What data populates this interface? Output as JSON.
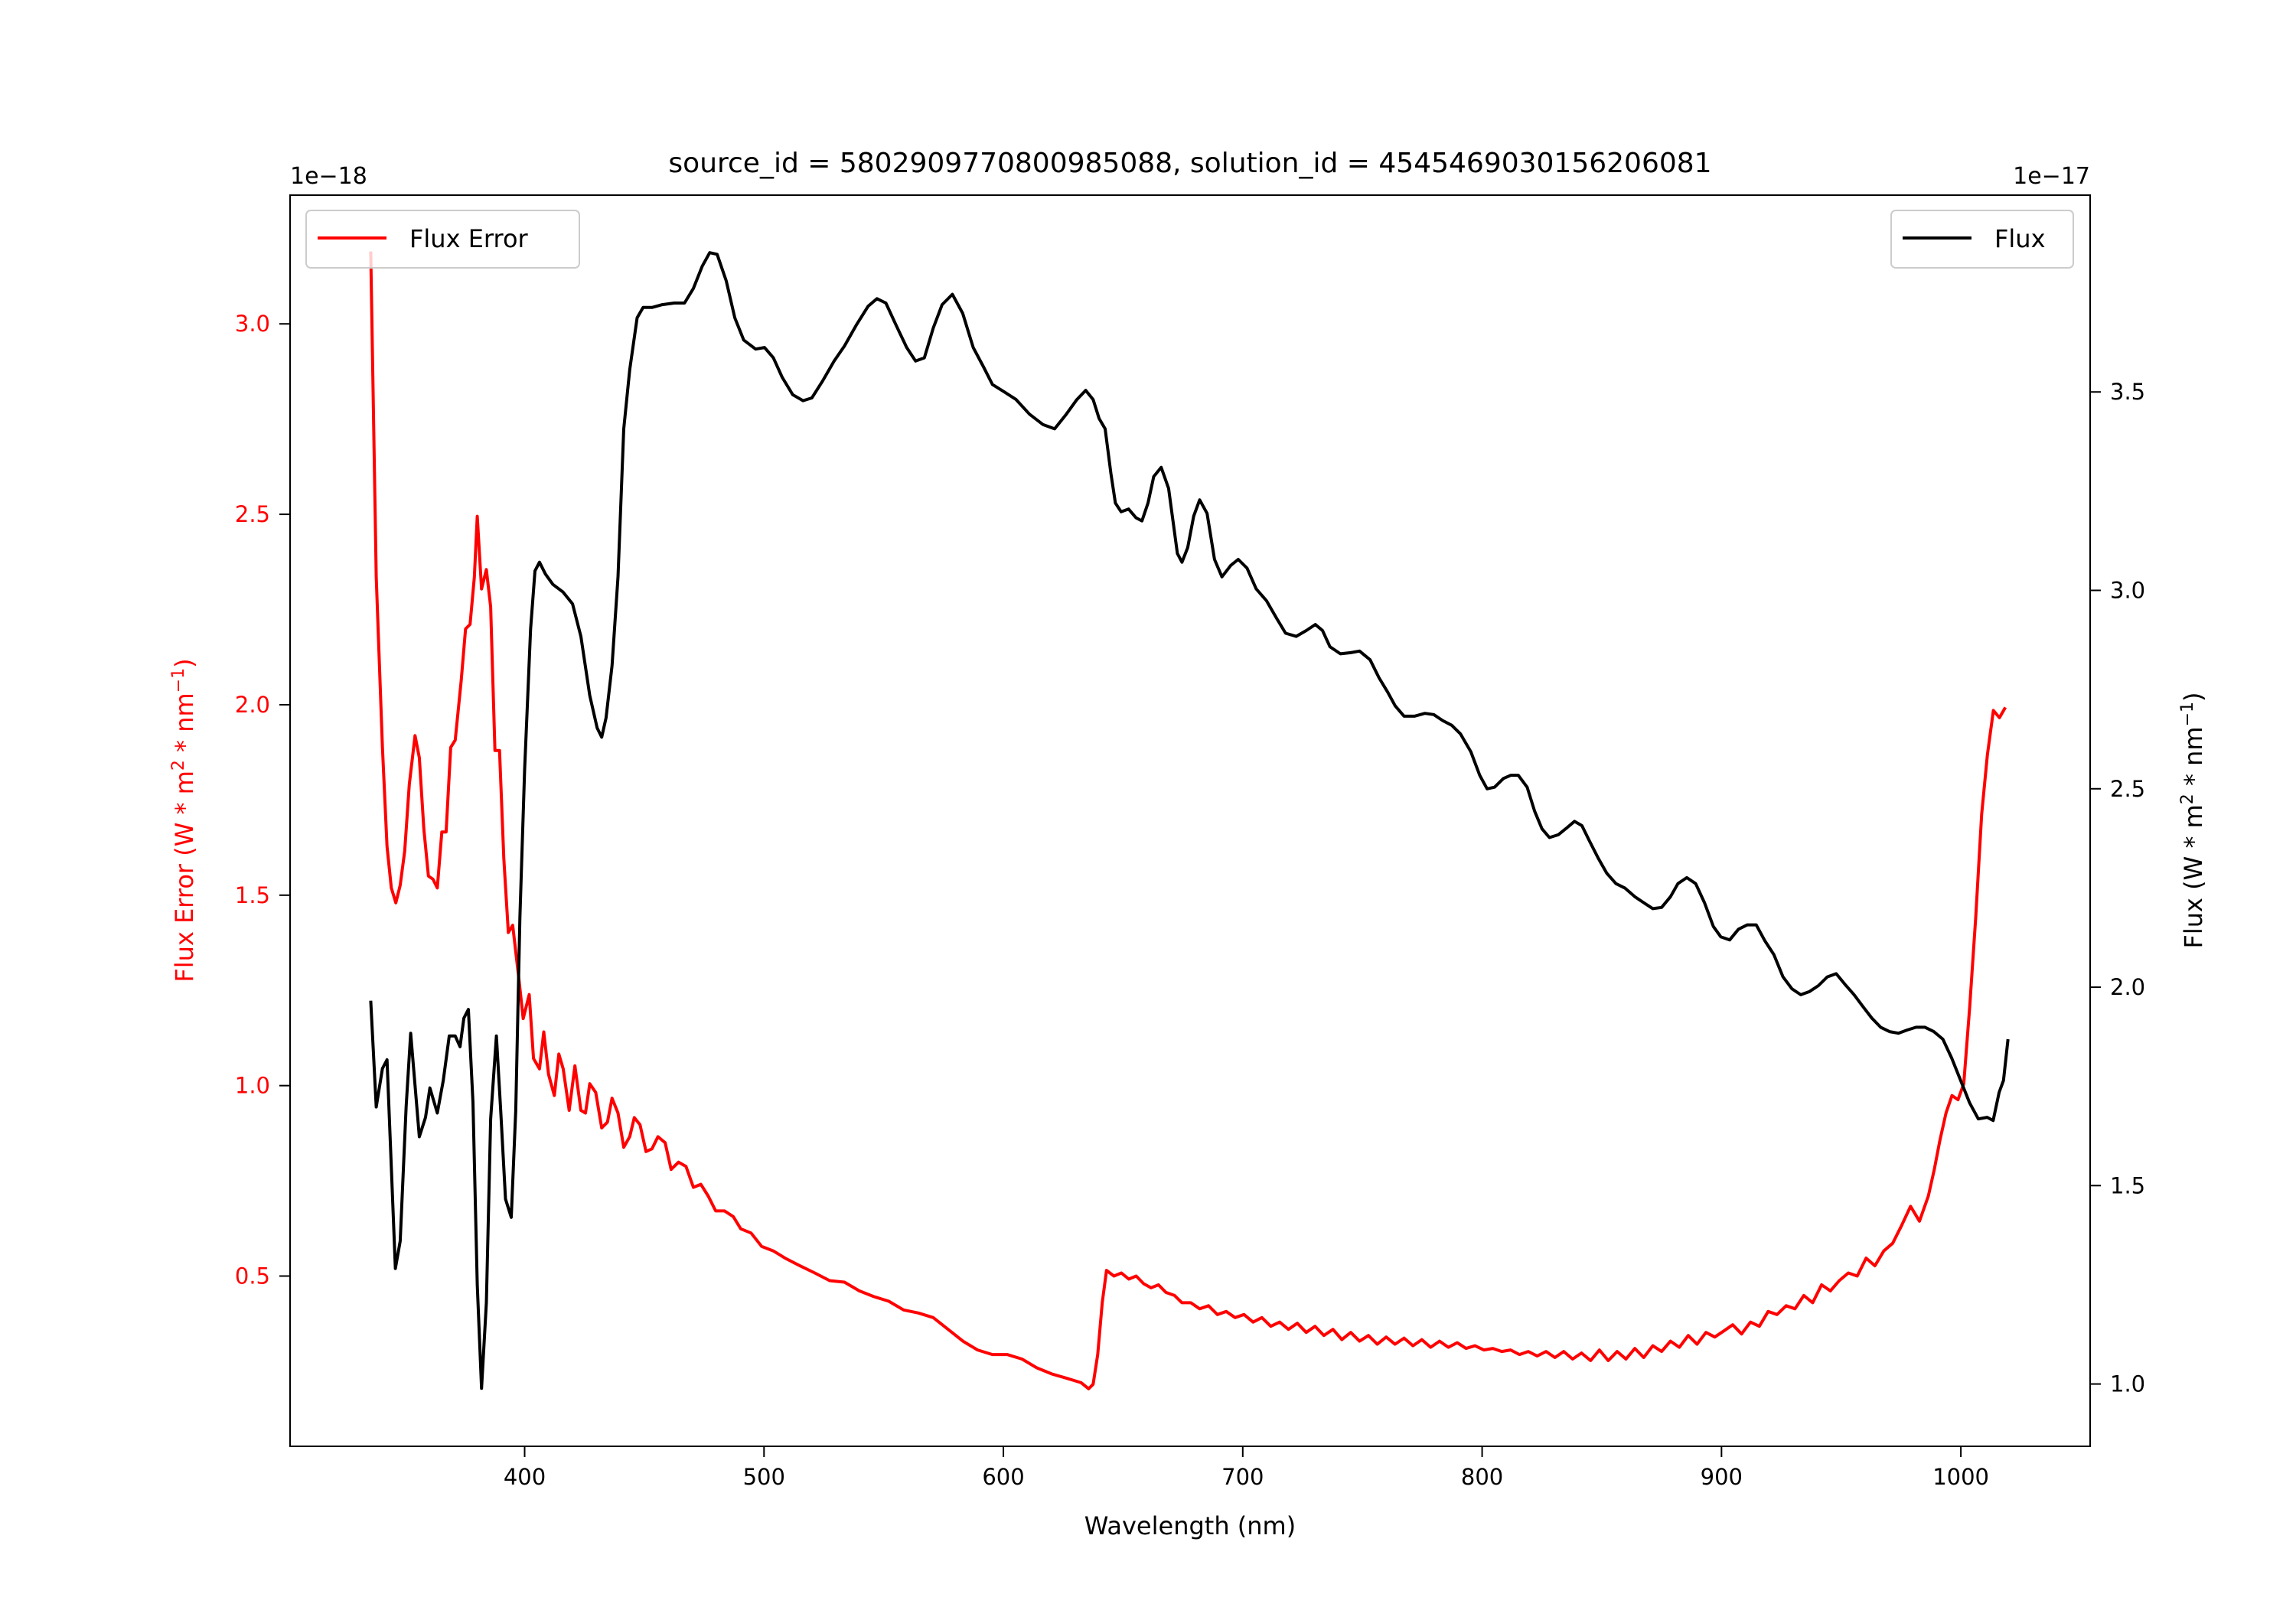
{
  "chart_data": {
    "type": "line",
    "title": "source_id = 5802909770800985088, solution_id = 4545469030156206081",
    "xlabel": "Wavelength (nm)",
    "xlim": [
      302,
      1054
    ],
    "xticks": [
      400,
      500,
      600,
      700,
      800,
      900,
      1000
    ],
    "grid": false,
    "left_axis": {
      "label_main": "Flux Error (W * m",
      "label_sup1": "2",
      "label_mid": " * nm",
      "label_sup2": "−1",
      "label_end": ")",
      "offset_text": "1e−18",
      "ylim": [
        0.053,
        3.338
      ],
      "ticks": [
        0.5,
        1.0,
        1.5,
        2.0,
        2.5,
        3.0
      ],
      "tick_labels": [
        "0.5",
        "1.0",
        "1.5",
        "2.0",
        "2.5",
        "3.0"
      ],
      "color": "#ff0000"
    },
    "right_axis": {
      "label_main": "Flux (W * m",
      "label_sup1": "2",
      "label_mid": " * nm",
      "label_sup2": "−1",
      "label_end": ")",
      "offset_text": "1e−17",
      "ylim": [
        0.843,
        3.996
      ],
      "ticks": [
        1.0,
        1.5,
        2.0,
        2.5,
        3.0,
        3.5
      ],
      "tick_labels": [
        "1.0",
        "1.5",
        "2.0",
        "2.5",
        "3.0",
        "3.5"
      ],
      "color": "#000000"
    },
    "legends": [
      {
        "label": "Flux Error",
        "color": "#ff0000",
        "placement": "upper-left"
      },
      {
        "label": "Flux",
        "color": "#000000",
        "placement": "upper-right"
      }
    ],
    "series": [
      {
        "name": "Flux Error",
        "axis": "left",
        "color": "#ff0000",
        "unit_multiplier": "1e-18",
        "x": [
          335.7,
          338,
          340.6,
          342.5,
          344.3,
          346.2,
          348,
          349.9,
          351.8,
          354.2,
          356,
          357.9,
          359.8,
          361.7,
          363.5,
          365.4,
          367.2,
          369.1,
          371,
          373.5,
          375.3,
          377.2,
          379,
          380.2,
          382,
          384,
          385.8,
          387.6,
          389.5,
          391.3,
          393.2,
          395,
          397.5,
          399.4,
          401.9,
          403.7,
          406.2,
          408,
          410,
          412.4,
          414.3,
          416.1,
          418.6,
          421,
          423.5,
          425.4,
          427.2,
          429.7,
          432.2,
          434.6,
          436.5,
          439,
          441.4,
          443.9,
          445.8,
          448.2,
          450.7,
          453.2,
          455.7,
          458.7,
          461.2,
          464.3,
          467.4,
          470.5,
          473.6,
          476.7,
          479.8,
          483.5,
          487.2,
          490.3,
          494.6,
          499,
          503.9,
          508.8,
          515,
          521.2,
          527.4,
          533.6,
          539.8,
          545.9,
          552.1,
          558.3,
          564.5,
          570.7,
          576.9,
          583.1,
          589.2,
          595.4,
          601.6,
          607.8,
          614,
          620.2,
          626.3,
          632.5,
          635.6,
          637.5,
          639.4,
          641.3,
          643.1,
          646.2,
          649.3,
          652.4,
          655.5,
          658.6,
          661.7,
          664.8,
          667.9,
          671.5,
          674.6,
          678.3,
          682,
          685.7,
          689.4,
          693.1,
          696.8,
          700.5,
          704.3,
          708,
          711.7,
          715.4,
          719.1,
          722.8,
          726.5,
          730.2,
          733.9,
          737.7,
          741.4,
          745.1,
          748.8,
          752.5,
          756.2,
          759.9,
          763.6,
          767.4,
          771.1,
          774.8,
          778.5,
          782.2,
          785.9,
          789.6,
          793.3,
          797,
          800.7,
          804.5,
          808.2,
          811.9,
          815.6,
          819.3,
          823,
          826.7,
          830.4,
          834.1,
          837.8,
          841.5,
          845.3,
          849,
          852.7,
          856.4,
          860.1,
          863.8,
          867.5,
          871.3,
          875,
          878.7,
          882.4,
          886.1,
          889.8,
          893.5,
          897.2,
          901,
          904.7,
          908.4,
          912.1,
          915.8,
          919.5,
          923.2,
          927,
          930.7,
          934.4,
          938.1,
          941.8,
          945.5,
          949.2,
          953,
          956.7,
          960.4,
          964.1,
          967.8,
          971.5,
          975.2,
          979,
          982.7,
          986.4,
          988.9,
          991.3,
          993.8,
          996.3,
          998.8,
          1001.2,
          1003.7,
          1006.2,
          1008.7,
          1011.1,
          1013.6,
          1016.1,
          1018.6
        ],
        "y": [
          3.19,
          2.335,
          1.888,
          1.628,
          1.519,
          1.48,
          1.526,
          1.616,
          1.791,
          1.919,
          1.861,
          1.674,
          1.55,
          1.542,
          1.519,
          1.666,
          1.666,
          1.888,
          1.907,
          2.063,
          2.199,
          2.211,
          2.335,
          2.495,
          2.304,
          2.355,
          2.257,
          1.88,
          1.88,
          1.596,
          1.402,
          1.421,
          1.285,
          1.176,
          1.239,
          1.071,
          1.044,
          1.141,
          1.029,
          0.974,
          1.083,
          1.044,
          0.935,
          1.052,
          0.935,
          0.928,
          1.005,
          0.982,
          0.889,
          0.904,
          0.967,
          0.928,
          0.838,
          0.866,
          0.916,
          0.897,
          0.827,
          0.834,
          0.866,
          0.85,
          0.78,
          0.799,
          0.788,
          0.733,
          0.741,
          0.71,
          0.671,
          0.671,
          0.656,
          0.624,
          0.613,
          0.578,
          0.566,
          0.547,
          0.527,
          0.508,
          0.488,
          0.484,
          0.461,
          0.446,
          0.434,
          0.411,
          0.403,
          0.391,
          0.36,
          0.329,
          0.306,
          0.294,
          0.294,
          0.282,
          0.259,
          0.243,
          0.232,
          0.22,
          0.204,
          0.216,
          0.294,
          0.43,
          0.515,
          0.5,
          0.508,
          0.492,
          0.5,
          0.48,
          0.469,
          0.477,
          0.457,
          0.449,
          0.43,
          0.43,
          0.414,
          0.422,
          0.399,
          0.407,
          0.391,
          0.399,
          0.379,
          0.391,
          0.368,
          0.379,
          0.36,
          0.376,
          0.352,
          0.368,
          0.344,
          0.36,
          0.333,
          0.352,
          0.329,
          0.344,
          0.321,
          0.34,
          0.321,
          0.337,
          0.317,
          0.333,
          0.313,
          0.329,
          0.313,
          0.325,
          0.31,
          0.317,
          0.306,
          0.31,
          0.302,
          0.306,
          0.294,
          0.302,
          0.29,
          0.302,
          0.286,
          0.302,
          0.282,
          0.298,
          0.278,
          0.306,
          0.278,
          0.302,
          0.282,
          0.31,
          0.286,
          0.317,
          0.302,
          0.329,
          0.313,
          0.344,
          0.321,
          0.352,
          0.34,
          0.356,
          0.372,
          0.348,
          0.379,
          0.368,
          0.407,
          0.399,
          0.422,
          0.414,
          0.449,
          0.43,
          0.477,
          0.461,
          0.488,
          0.508,
          0.5,
          0.547,
          0.527,
          0.566,
          0.586,
          0.632,
          0.683,
          0.644,
          0.71,
          0.78,
          0.858,
          0.928,
          0.974,
          0.963,
          1.005,
          1.208,
          1.441,
          1.713,
          1.869,
          1.985,
          1.966,
          1.993
        ]
      },
      {
        "name": "Flux",
        "axis": "right",
        "color": "#000000",
        "unit_multiplier": "1e-17",
        "x": [
          335.7,
          338,
          340.6,
          342.5,
          346,
          348,
          350.5,
          352.4,
          356,
          358.6,
          360.4,
          363.5,
          366,
          368.5,
          371,
          373,
          374.6,
          376.5,
          378.4,
          380.2,
          382,
          384,
          385.8,
          388.2,
          390,
          392,
          394.4,
          396.3,
          398,
          400,
          402.5,
          404.3,
          406.2,
          408.7,
          411.8,
          416,
          420,
          423.5,
          427.2,
          430.3,
          432.2,
          434,
          436.5,
          439,
          441.4,
          443.9,
          447,
          449.5,
          453.2,
          457.5,
          462.5,
          466.8,
          470.5,
          474.2,
          477.3,
          480.4,
          484.2,
          487.8,
          491.5,
          496.5,
          500.2,
          503.9,
          507.6,
          512,
          516.3,
          520,
          524.3,
          529.3,
          533.6,
          538.5,
          543.5,
          547.2,
          550.9,
          555.2,
          559.6,
          563.3,
          567,
          570.7,
          574.4,
          578.7,
          583,
          587.4,
          591.7,
          595.4,
          600.4,
          605.3,
          610.9,
          616.5,
          621.4,
          626.3,
          630.7,
          634.4,
          637.5,
          640,
          642.5,
          644.9,
          646.8,
          649.2,
          652.3,
          655.4,
          657.9,
          660.4,
          662.8,
          665.9,
          669,
          672.7,
          674.6,
          677,
          679.5,
          682,
          685.1,
          688.2,
          691.3,
          695,
          698.1,
          701.8,
          705.6,
          709.9,
          714.2,
          717.9,
          722.3,
          726.6,
          730.3,
          733.3,
          736.4,
          740.8,
          745.1,
          748.8,
          753.2,
          756.9,
          760.6,
          763.7,
          767.4,
          771.7,
          776.1,
          779.8,
          783.5,
          787.3,
          791,
          795.3,
          799,
          802.1,
          805.2,
          808.9,
          812,
          815.1,
          818.8,
          821.9,
          825,
          828.1,
          831.8,
          834.9,
          838.6,
          841.7,
          844.8,
          848.5,
          852.1,
          855.9,
          859.6,
          863.8,
          867.5,
          871.3,
          875,
          878.7,
          881.8,
          885.5,
          889.2,
          892.9,
          896.6,
          899.7,
          903.4,
          907.1,
          910.8,
          914.5,
          918.2,
          921.9,
          925.7,
          929.4,
          933.1,
          936.8,
          940.5,
          944.2,
          947.9,
          951.6,
          955.4,
          959.1,
          962.8,
          966.5,
          970.2,
          973.9,
          977.6,
          981.3,
          985,
          988.7,
          992.5,
          996.2,
          999.9,
          1003.6,
          1007.3,
          1011,
          1013.5,
          1016,
          1017.8,
          1019.7
        ],
        "y": [
          1.966,
          1.698,
          1.795,
          1.817,
          1.291,
          1.36,
          1.7,
          1.884,
          1.623,
          1.672,
          1.746,
          1.683,
          1.765,
          1.877,
          1.877,
          1.85,
          1.922,
          1.944,
          1.709,
          1.25,
          0.989,
          1.205,
          1.668,
          1.877,
          1.69,
          1.466,
          1.42,
          1.69,
          2.175,
          2.549,
          2.903,
          3.049,
          3.071,
          3.041,
          3.015,
          2.996,
          2.966,
          2.884,
          2.735,
          2.653,
          2.63,
          2.679,
          2.81,
          3.034,
          3.407,
          3.556,
          3.687,
          3.713,
          3.713,
          3.72,
          3.724,
          3.724,
          3.761,
          3.817,
          3.851,
          3.847,
          3.78,
          3.687,
          3.631,
          3.608,
          3.612,
          3.586,
          3.537,
          3.493,
          3.478,
          3.485,
          3.526,
          3.578,
          3.616,
          3.668,
          3.716,
          3.735,
          3.724,
          3.668,
          3.612,
          3.578,
          3.586,
          3.661,
          3.72,
          3.746,
          3.698,
          3.612,
          3.563,
          3.519,
          3.5,
          3.481,
          3.444,
          3.418,
          3.407,
          3.444,
          3.481,
          3.504,
          3.481,
          3.433,
          3.407,
          3.295,
          3.22,
          3.198,
          3.205,
          3.183,
          3.175,
          3.22,
          3.287,
          3.31,
          3.257,
          3.093,
          3.071,
          3.108,
          3.187,
          3.228,
          3.194,
          3.078,
          3.034,
          3.063,
          3.078,
          3.056,
          3.004,
          2.974,
          2.929,
          2.892,
          2.884,
          2.899,
          2.914,
          2.899,
          2.858,
          2.84,
          2.843,
          2.847,
          2.825,
          2.78,
          2.743,
          2.709,
          2.683,
          2.683,
          2.69,
          2.687,
          2.672,
          2.66,
          2.638,
          2.593,
          2.534,
          2.5,
          2.504,
          2.526,
          2.534,
          2.534,
          2.504,
          2.444,
          2.399,
          2.377,
          2.384,
          2.399,
          2.418,
          2.407,
          2.369,
          2.325,
          2.287,
          2.261,
          2.25,
          2.228,
          2.213,
          2.198,
          2.201,
          2.228,
          2.261,
          2.276,
          2.261,
          2.213,
          2.153,
          2.127,
          2.119,
          2.146,
          2.157,
          2.157,
          2.116,
          2.082,
          2.026,
          1.996,
          1.981,
          1.989,
          2.004,
          2.026,
          2.034,
          2.007,
          1.981,
          1.951,
          1.922,
          1.899,
          1.888,
          1.884,
          1.892,
          1.899,
          1.899,
          1.888,
          1.869,
          1.821,
          1.765,
          1.709,
          1.668,
          1.672,
          1.664,
          1.735,
          1.765,
          1.869
        ]
      }
    ]
  }
}
